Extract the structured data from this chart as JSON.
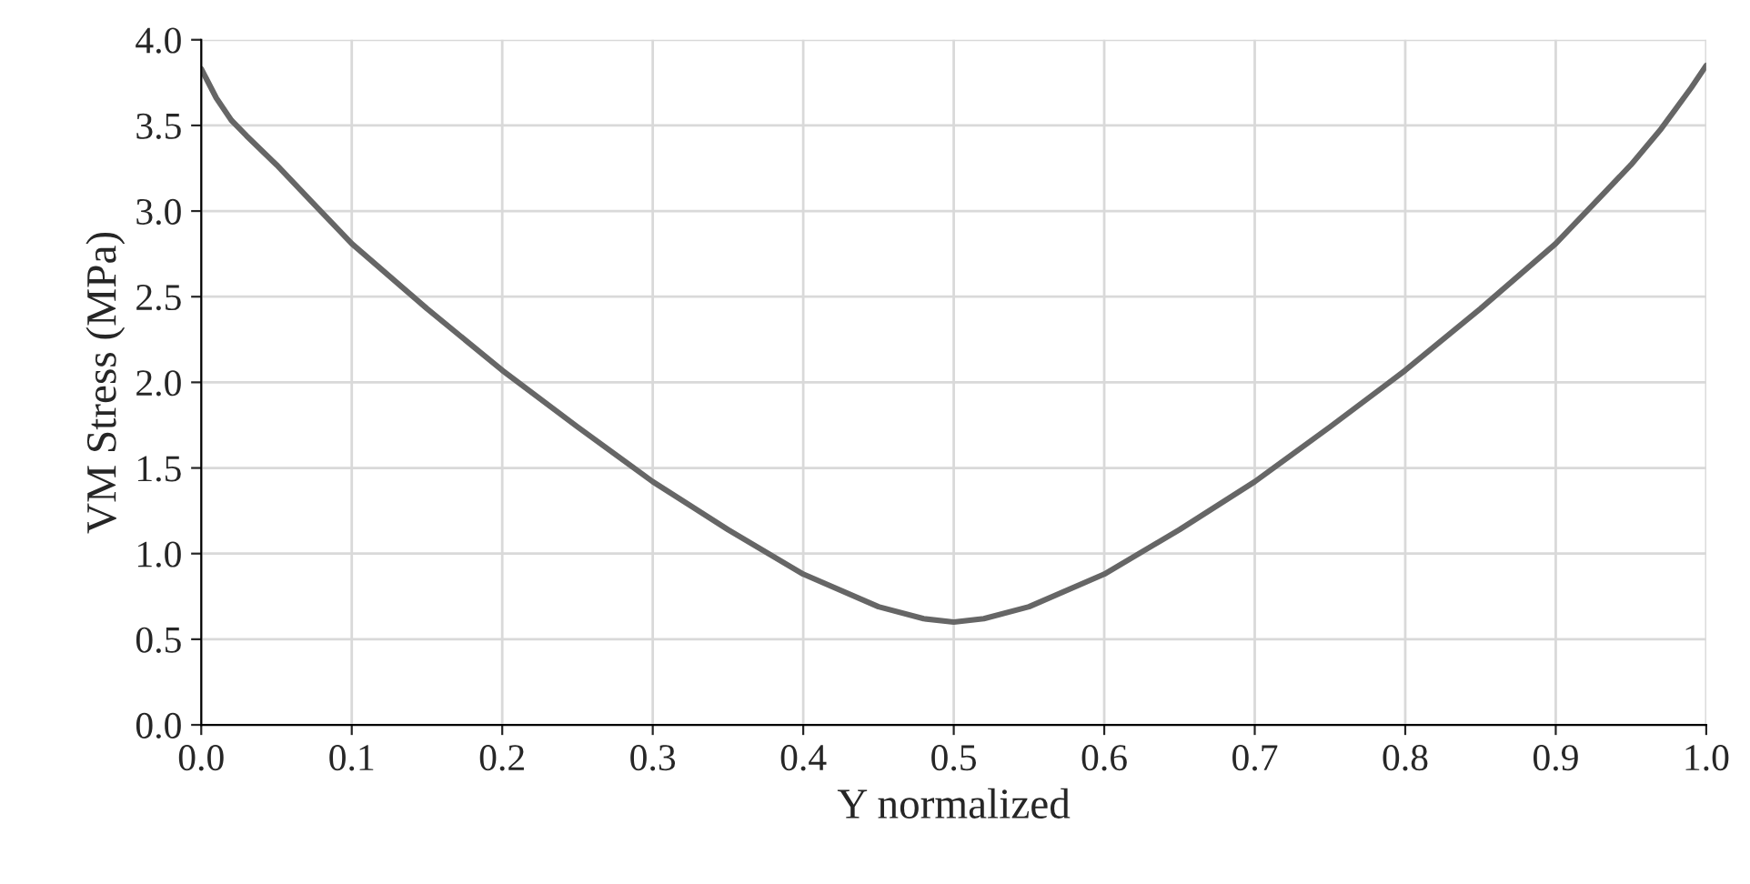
{
  "chart_data": {
    "type": "line",
    "xlabel": "Y normalized",
    "ylabel": "VM Stress (MPa)",
    "xlim": [
      0,
      1
    ],
    "ylim": [
      0,
      4
    ],
    "xticks": [
      {
        "value": 0,
        "label": "0.0"
      },
      0.1,
      0.2,
      0.3,
      0.4,
      0.5,
      0.6,
      0.7,
      0.8,
      0.9,
      {
        "value": 1,
        "label": "1.0"
      }
    ],
    "yticks": [
      {
        "value": 0,
        "label": "0.0"
      },
      0.5,
      {
        "value": 1,
        "label": "1.0"
      },
      1.5,
      {
        "value": 2,
        "label": "2.0"
      },
      2.5,
      {
        "value": 3,
        "label": "3.0"
      },
      3.5,
      {
        "value": 4,
        "label": "4.0"
      }
    ],
    "grid": true,
    "marker": "none",
    "line_style": "solid",
    "series": [
      {
        "color": "#666666",
        "x": [
          0,
          0.01,
          0.02,
          0.03,
          0.05,
          0.075,
          0.1,
          0.15,
          0.2,
          0.25,
          0.3,
          0.35,
          0.4,
          0.45,
          0.48,
          0.5,
          0.52,
          0.55,
          0.6,
          0.65,
          0.7,
          0.75,
          0.8,
          0.85,
          0.9,
          0.925,
          0.95,
          0.97,
          0.98,
          0.99,
          1.0
        ],
        "values": [
          3.83,
          3.66,
          3.53,
          3.44,
          3.27,
          3.04,
          2.81,
          2.43,
          2.07,
          1.74,
          1.42,
          1.14,
          0.88,
          0.69,
          0.62,
          0.6,
          0.62,
          0.69,
          0.88,
          1.14,
          1.42,
          1.74,
          2.07,
          2.43,
          2.81,
          3.04,
          3.27,
          3.48,
          3.6,
          3.72,
          3.85
        ]
      }
    ]
  }
}
